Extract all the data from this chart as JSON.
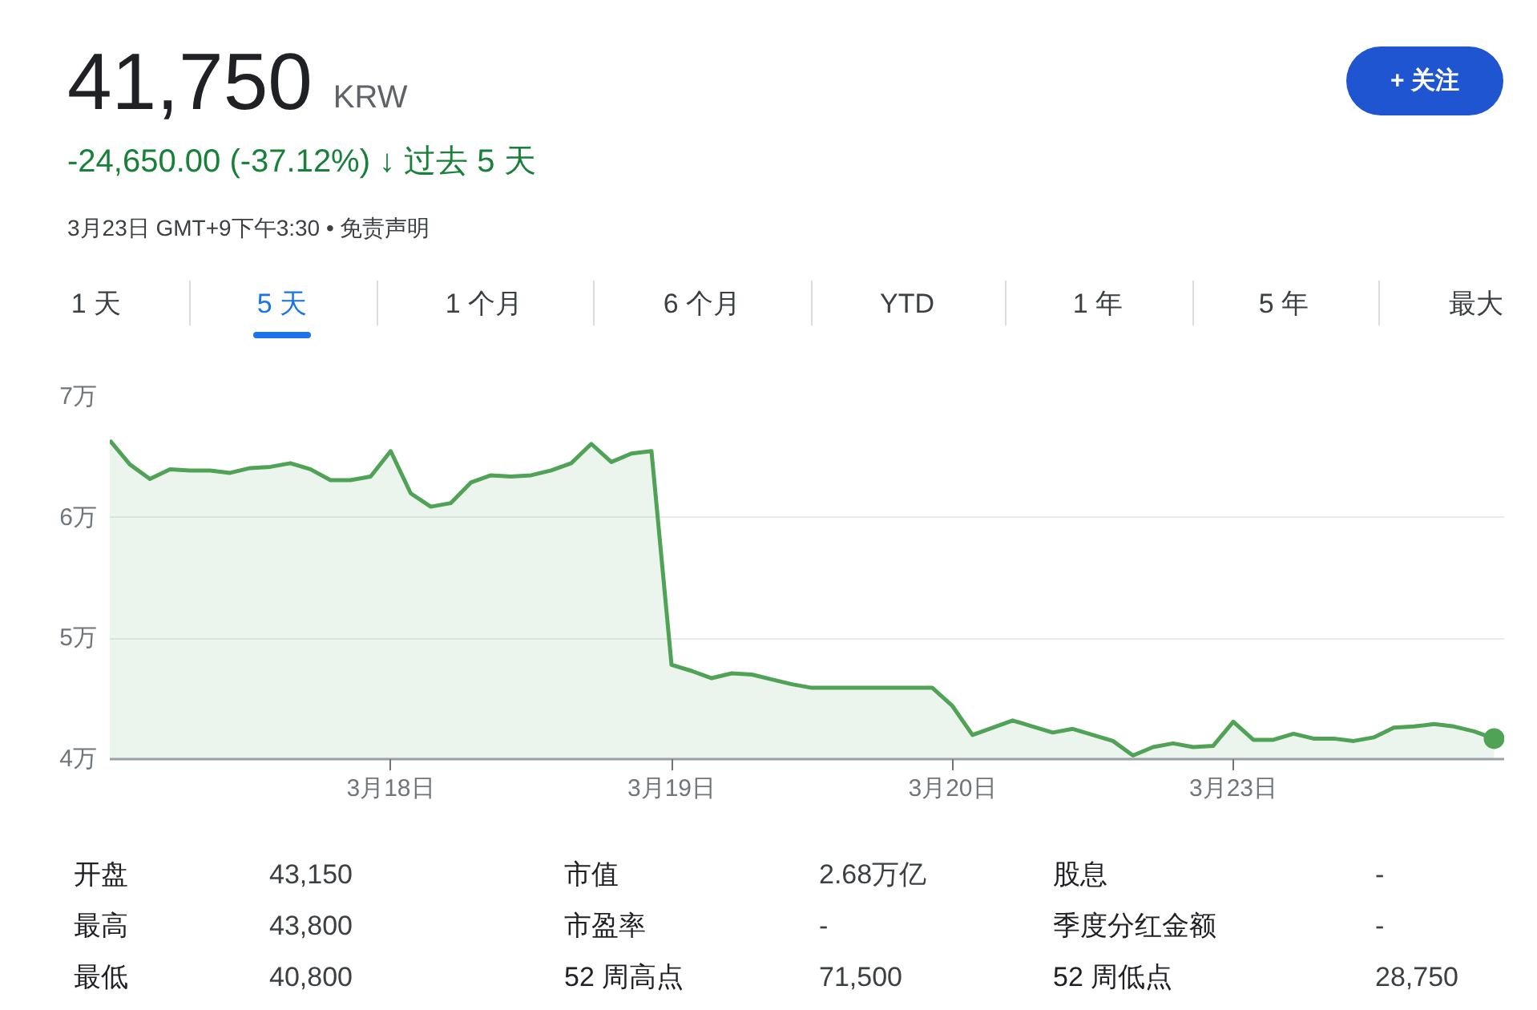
{
  "chart_data": {
    "type": "area",
    "title": "41,750 KRW",
    "subtitle": "-24,650.00 (-37.12%) ↓ 过去 5 天",
    "annotations": [
      "3月23日 GMT+9下午3:30 • 免责声明",
      "1 天",
      "5 天",
      "1 个月",
      "6 个月",
      "YTD",
      "1 年",
      "5 年",
      "最大",
      "+ 关注",
      "开盘",
      "43,150",
      "市值",
      "2.68万亿",
      "股息",
      "-",
      "最高",
      "43,800",
      "市盈率",
      "-",
      "季度分红金额",
      "-",
      "最低",
      "40,800",
      "52 周高点",
      "71,500",
      "52 周低点",
      "28,750"
    ],
    "categories": [
      null,
      null,
      null,
      null,
      null,
      null,
      null,
      null,
      null,
      null,
      null,
      null,
      null,
      null,
      "3月18日",
      null,
      null,
      null,
      null,
      null,
      null,
      null,
      null,
      null,
      null,
      null,
      null,
      null,
      "3月19日",
      null,
      null,
      null,
      null,
      null,
      null,
      null,
      null,
      null,
      null,
      null,
      null,
      null,
      "3月20日",
      null,
      null,
      null,
      null,
      null,
      null,
      null,
      null,
      null,
      null,
      null,
      null,
      null,
      "3月23日",
      null,
      null,
      null,
      null,
      null,
      null,
      null,
      null,
      null,
      null,
      null,
      null,
      null
    ],
    "series": [
      {
        "color": "#50a257",
        "values": [
          6.64,
          6.44,
          6.32,
          6.4,
          6.39,
          6.39,
          6.37,
          6.41,
          6.42,
          6.45,
          6.4,
          6.31,
          6.31,
          6.34,
          6.55,
          6.2,
          6.09,
          6.12,
          6.29,
          6.35,
          6.34,
          6.35,
          6.39,
          6.45,
          6.61,
          6.46,
          6.53,
          6.55,
          4.78,
          4.73,
          4.67,
          4.71,
          4.7,
          4.66,
          4.62,
          4.59,
          4.59,
          4.59,
          4.59,
          4.59,
          4.59,
          4.59,
          4.44,
          4.2,
          4.26,
          4.32,
          4.27,
          4.22,
          4.25,
          4.2,
          4.15,
          4.03,
          4.1,
          4.13,
          4.1,
          4.11,
          4.31,
          4.16,
          4.16,
          4.21,
          4.17,
          4.17,
          4.15,
          4.18,
          4.26,
          4.27,
          4.29,
          4.27,
          4.23,
          4.17
        ]
      },
      {
        "type": "scatter",
        "marker": "circle",
        "color": "#50a257",
        "values": [
          null,
          null,
          null,
          null,
          null,
          null,
          null,
          null,
          null,
          null,
          null,
          null,
          null,
          null,
          null,
          null,
          null,
          null,
          null,
          null,
          null,
          null,
          null,
          null,
          null,
          null,
          null,
          null,
          null,
          null,
          null,
          null,
          null,
          null,
          null,
          null,
          null,
          null,
          null,
          null,
          null,
          null,
          null,
          null,
          null,
          null,
          null,
          null,
          null,
          null,
          null,
          null,
          null,
          null,
          null,
          null,
          null,
          null,
          null,
          null,
          null,
          null,
          null,
          null,
          null,
          null,
          null,
          null,
          null,
          4.17
        ]
      }
    ],
    "ylim": [
      4,
      7
    ],
    "yticks": [
      {
        "value": 4,
        "label": "4万"
      },
      {
        "value": 5,
        "label": "5万"
      },
      {
        "value": 6,
        "label": "6万"
      },
      {
        "value": 7,
        "label": "7万"
      }
    ],
    "grid": "y"
  }
}
